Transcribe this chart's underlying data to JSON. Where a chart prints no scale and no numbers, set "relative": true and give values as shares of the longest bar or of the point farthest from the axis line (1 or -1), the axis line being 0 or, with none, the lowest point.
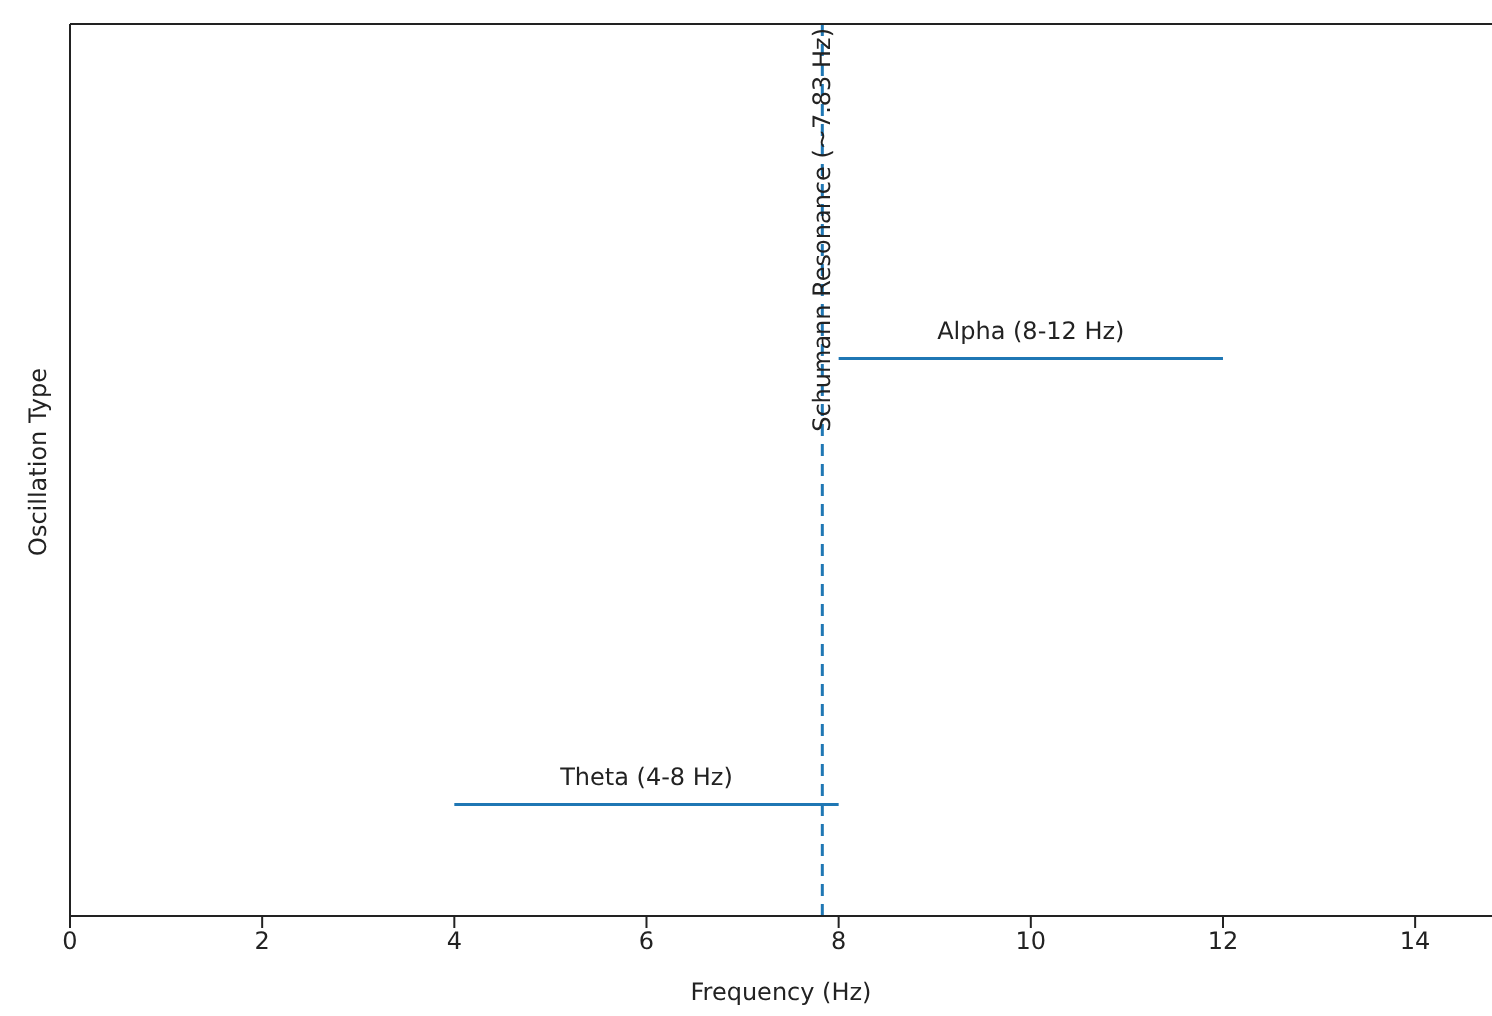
{
  "chart_data": {
    "type": "line",
    "relative": true,
    "xlabel": "Frequency (Hz)",
    "ylabel": "Oscillation Type",
    "xlim": [
      0,
      14.8
    ],
    "xticks": [
      0,
      2,
      4,
      6,
      8,
      10,
      12,
      14
    ],
    "tick_labels": "x",
    "series": [
      {
        "color": "#1f77b4",
        "x": [
          4,
          8,
          null,
          8,
          12
        ],
        "values": [
          0.2,
          0.2,
          null,
          1,
          1
        ]
      }
    ],
    "annotations": [
      {
        "text": "Theta (4-8 Hz)",
        "x": 6,
        "y": 0.2
      },
      {
        "text": "Alpha (8-12 Hz)",
        "x": 10,
        "y": 1
      }
    ],
    "ref_lines": [
      {
        "axis": "x",
        "value": 7.83,
        "label": "Schumann Resonance (~7.83 Hz)",
        "color": "#1f77b4",
        "line_style": "dashed"
      }
    ]
  }
}
